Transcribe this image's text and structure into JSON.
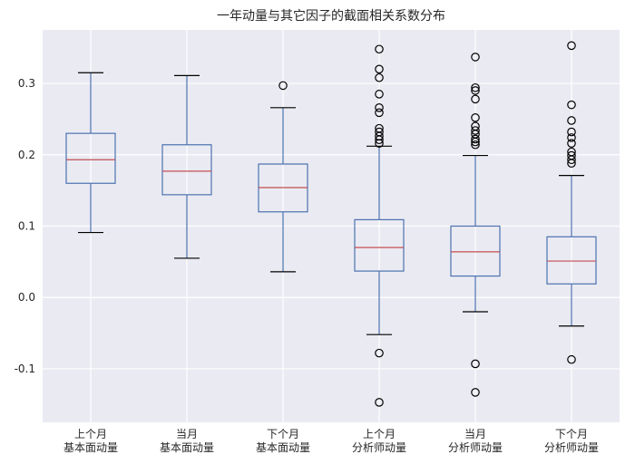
{
  "chart_data": {
    "type": "box",
    "title": "一年动量与其它因子的截面相关系数分布",
    "xlabel": "",
    "ylabel": "",
    "ylim": [
      -0.175,
      0.375
    ],
    "y_ticks": [
      -0.1,
      0.0,
      0.1,
      0.2,
      0.3
    ],
    "y_tick_labels": [
      "-0.1",
      "0.0",
      "0.1",
      "0.2",
      "0.3"
    ],
    "grid": true,
    "categories": [
      [
        "上个月",
        "基本面动量"
      ],
      [
        "当月",
        "基本面动量"
      ],
      [
        "下个月",
        "基本面动量"
      ],
      [
        "上个月",
        "分析师动量"
      ],
      [
        "当月",
        "分析师动量"
      ],
      [
        "下个月",
        "分析师动量"
      ]
    ],
    "boxes": [
      {
        "whisker_low": 0.091,
        "q1": 0.16,
        "median": 0.193,
        "q3": 0.23,
        "whisker_high": 0.315,
        "outliers": []
      },
      {
        "whisker_low": 0.055,
        "q1": 0.144,
        "median": 0.177,
        "q3": 0.214,
        "whisker_high": 0.311,
        "outliers": []
      },
      {
        "whisker_low": 0.036,
        "q1": 0.12,
        "median": 0.154,
        "q3": 0.187,
        "whisker_high": 0.266,
        "outliers": [
          0.297
        ]
      },
      {
        "whisker_low": -0.052,
        "q1": 0.037,
        "median": 0.07,
        "q3": 0.109,
        "whisker_high": 0.212,
        "outliers": [
          0.348,
          0.32,
          0.308,
          0.285,
          0.266,
          0.259,
          0.237,
          0.232,
          0.226,
          0.221,
          0.216,
          -0.078,
          -0.147
        ]
      },
      {
        "whisker_low": -0.02,
        "q1": 0.03,
        "median": 0.064,
        "q3": 0.1,
        "whisker_high": 0.199,
        "outliers": [
          0.337,
          0.294,
          0.29,
          0.278,
          0.252,
          0.24,
          0.234,
          0.229,
          0.222,
          0.218,
          0.214,
          -0.093,
          -0.133
        ]
      },
      {
        "whisker_low": -0.04,
        "q1": 0.019,
        "median": 0.051,
        "q3": 0.085,
        "whisker_high": 0.171,
        "outliers": [
          0.353,
          0.27,
          0.248,
          0.232,
          0.224,
          0.216,
          0.204,
          0.199,
          0.193,
          0.188,
          -0.087
        ]
      }
    ]
  },
  "colors": {
    "plot_background": "#eaeaf2",
    "grid": "#ffffff",
    "box": "#4c72b0",
    "median": "#c44e52",
    "whisker_cap": "#000000",
    "outlier": "#000000"
  }
}
